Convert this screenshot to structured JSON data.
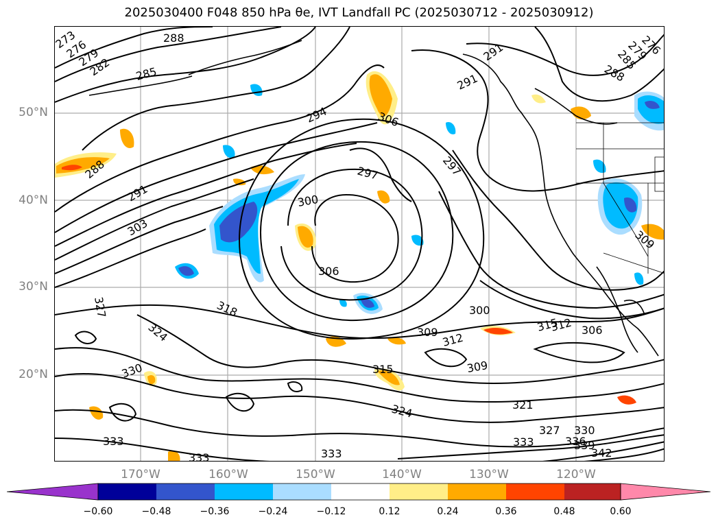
{
  "title": "2025030400 F048 850 hPa θe, IVT Landfall PC (2025030712 - 2025030912)",
  "lat_labels": [
    "50°N",
    "40°N",
    "30°N",
    "20°N"
  ],
  "lon_labels": [
    "170°W",
    "160°W",
    "150°W",
    "140°W",
    "130°W",
    "120°W"
  ],
  "contour_labels": [
    "273",
    "276",
    "279",
    "282",
    "285",
    "288",
    "288",
    "291",
    "303",
    "294",
    "306",
    "300",
    "297",
    "297",
    "291",
    "291",
    "288",
    "285",
    "279",
    "276",
    "306",
    "318",
    "324",
    "327",
    "330",
    "333",
    "333",
    "333",
    "315",
    "324",
    "309",
    "312",
    "309",
    "300",
    "315",
    "312",
    "306",
    "309",
    "321",
    "327",
    "330",
    "336",
    "339",
    "342",
    "333"
  ],
  "colorbar": {
    "ticks": [
      "−0.60",
      "−0.48",
      "−0.36",
      "−0.24",
      "−0.12",
      "0.12",
      "0.24",
      "0.36",
      "0.48",
      "0.60"
    ],
    "colors": [
      "#9933cc",
      "#000099",
      "#3355cc",
      "#00bbff",
      "#aaddff",
      "#ffffff",
      "#ffee88",
      "#ffaa00",
      "#ff4400",
      "#bb2222",
      "#ff88aa"
    ]
  }
}
